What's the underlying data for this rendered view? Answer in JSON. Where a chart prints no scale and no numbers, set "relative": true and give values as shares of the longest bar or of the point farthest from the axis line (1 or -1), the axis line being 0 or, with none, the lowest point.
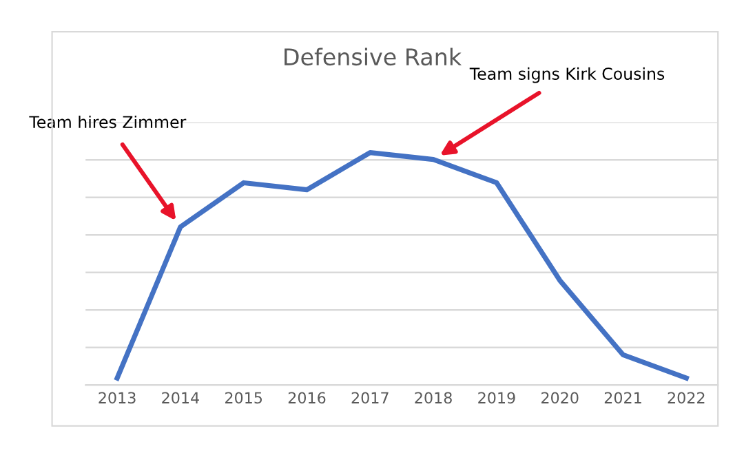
{
  "chart_data": {
    "type": "line",
    "title": "Defensive Rank",
    "relative": true,
    "grid": "y",
    "categories": [
      "2013",
      "2014",
      "2015",
      "2016",
      "2017",
      "2018",
      "2019",
      "2020",
      "2021",
      "2022"
    ],
    "series": [
      {
        "color": "#4472c4",
        "values": [
          0.03,
          0.68,
          0.87,
          0.84,
          1,
          0.97,
          0.87,
          0.45,
          0.13,
          0.03
        ]
      }
    ],
    "annotations": [
      {
        "text": "Team hires Zimmer",
        "x": "2014",
        "y": 0.68
      },
      {
        "text": "Team signs Kirk Cousins",
        "x": "2018",
        "y": 0.97
      }
    ],
    "tick_labels": "x"
  }
}
